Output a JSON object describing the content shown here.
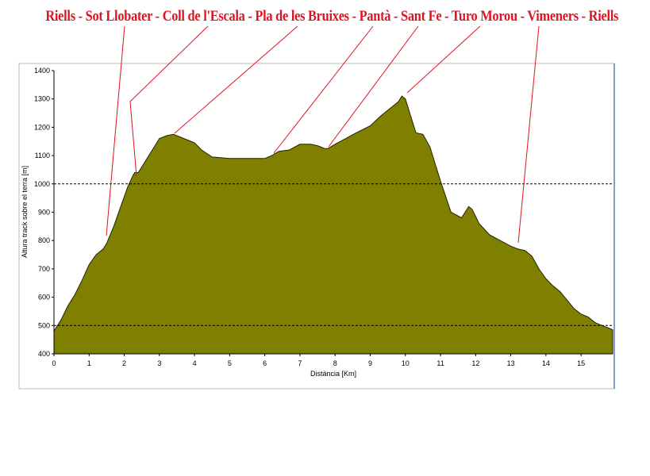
{
  "chart_data": {
    "type": "area",
    "title": "Riells - Sot Llobater - Coll de l'Escala - Pla de les Bruixes - Pantà - Sant Fe - Turo Morou - Vimeners - Riells",
    "xlabel": "Distància [Km]",
    "ylabel": "Altura track sobre el terra [m]",
    "xlim": [
      0,
      15.9
    ],
    "ylim": [
      400,
      1400
    ],
    "x_ticks": [
      0,
      1,
      2,
      3,
      4,
      5,
      6,
      7,
      8,
      9,
      10,
      11,
      12,
      13,
      14,
      15
    ],
    "y_ticks": [
      400,
      500,
      600,
      700,
      800,
      900,
      1000,
      1100,
      1200,
      1300,
      1400
    ],
    "reference_lines": [
      500,
      1000
    ],
    "fill_color": "#808000",
    "annotation_color": "#e0121e",
    "series": [
      {
        "x": [
          0,
          0.2,
          0.4,
          0.6,
          0.8,
          1.0,
          1.2,
          1.4,
          1.5,
          1.7,
          1.9,
          2.1,
          2.25,
          2.3,
          2.4,
          2.6,
          2.8,
          3.0,
          3.2,
          3.4,
          3.6,
          3.8,
          4.0,
          4.2,
          4.5,
          5.0,
          5.5,
          6.0,
          6.2,
          6.4,
          6.7,
          7.0,
          7.3,
          7.5,
          7.7,
          7.8,
          8.0,
          8.3,
          8.6,
          9.0,
          9.3,
          9.6,
          9.8,
          9.9,
          10.0,
          10.1,
          10.3,
          10.5,
          10.7,
          11.0,
          11.3,
          11.6,
          11.8,
          11.9,
          12.1,
          12.4,
          12.7,
          13.0,
          13.2,
          13.4,
          13.6,
          13.8,
          14.0,
          14.2,
          14.4,
          14.6,
          14.8,
          15.0,
          15.2,
          15.4,
          15.6,
          15.8,
          15.9
        ],
        "y": [
          480,
          520,
          570,
          610,
          660,
          715,
          750,
          770,
          790,
          850,
          920,
          990,
          1030,
          1040,
          1040,
          1080,
          1120,
          1160,
          1170,
          1175,
          1165,
          1155,
          1145,
          1120,
          1095,
          1090,
          1090,
          1090,
          1100,
          1115,
          1120,
          1140,
          1140,
          1135,
          1125,
          1125,
          1140,
          1160,
          1180,
          1205,
          1240,
          1270,
          1290,
          1310,
          1300,
          1260,
          1180,
          1175,
          1130,
          1010,
          900,
          880,
          920,
          910,
          860,
          820,
          800,
          780,
          770,
          765,
          745,
          700,
          665,
          640,
          620,
          590,
          560,
          540,
          530,
          510,
          500,
          490,
          485
        ]
      }
    ]
  }
}
